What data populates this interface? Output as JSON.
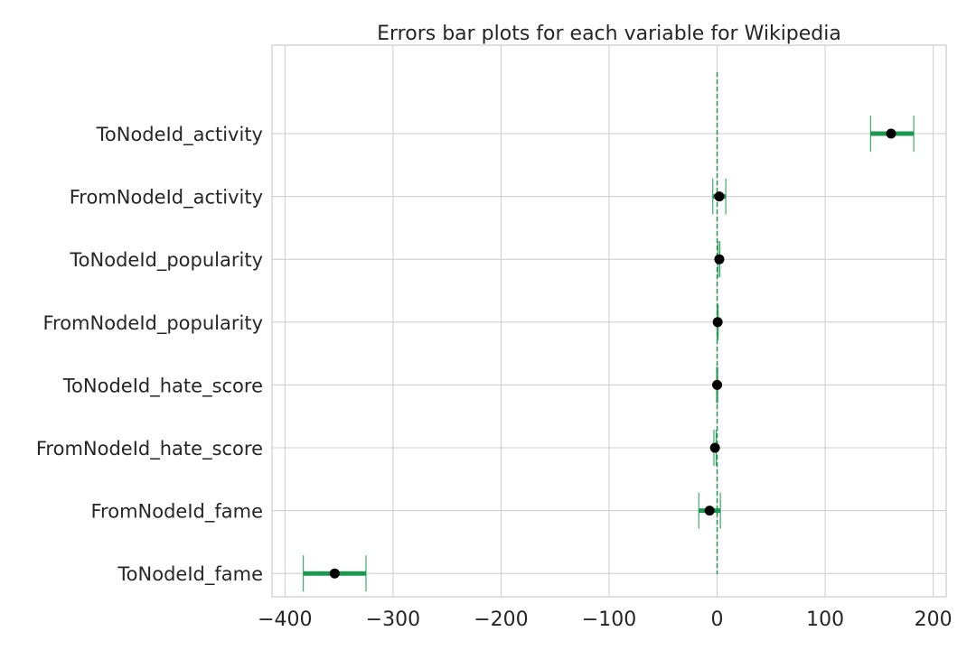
{
  "chart_data": {
    "type": "errorbar",
    "title": "Errors bar plots for each variable for Wikipedia",
    "xlabel": "",
    "ylabel": "",
    "xlim": [
      -412,
      212
    ],
    "xticks": [
      -400,
      -300,
      -200,
      -100,
      0,
      100,
      200
    ],
    "xtick_labels": [
      "−400",
      "−300",
      "−200",
      "−100",
      "0",
      "100",
      "200"
    ],
    "grid": true,
    "reference_line": {
      "x": 0,
      "style": "dashed"
    },
    "categories": [
      "ToNodeId_activity",
      "FromNodeId_activity",
      "ToNodeId_popularity",
      "FromNodeId_popularity",
      "ToNodeId_hate_score",
      "FromNodeId_hate_score",
      "FromNodeId_fame",
      "ToNodeId_fame"
    ],
    "points": [
      {
        "label": "ToNodeId_activity",
        "estimate": 161,
        "lower": 142,
        "upper": 182
      },
      {
        "label": "FromNodeId_activity",
        "estimate": 2,
        "lower": -4,
        "upper": 8
      },
      {
        "label": "ToNodeId_popularity",
        "estimate": 2,
        "lower": 1,
        "upper": 2.5
      },
      {
        "label": "FromNodeId_popularity",
        "estimate": 0.5,
        "lower": 0,
        "upper": 1
      },
      {
        "label": "ToNodeId_hate_score",
        "estimate": 0,
        "lower": -0.5,
        "upper": 0.5
      },
      {
        "label": "FromNodeId_hate_score",
        "estimate": -2,
        "lower": -3,
        "upper": -1
      },
      {
        "label": "FromNodeId_fame",
        "estimate": -7,
        "lower": -17,
        "upper": 3
      },
      {
        "label": "ToNodeId_fame",
        "estimate": -354,
        "lower": -383,
        "upper": -325
      }
    ],
    "colors": {
      "errorbar": "#1a9850",
      "marker": "#000000",
      "reference_line": "#1a9850",
      "grid": "#cccccc",
      "text": "#262626"
    }
  }
}
